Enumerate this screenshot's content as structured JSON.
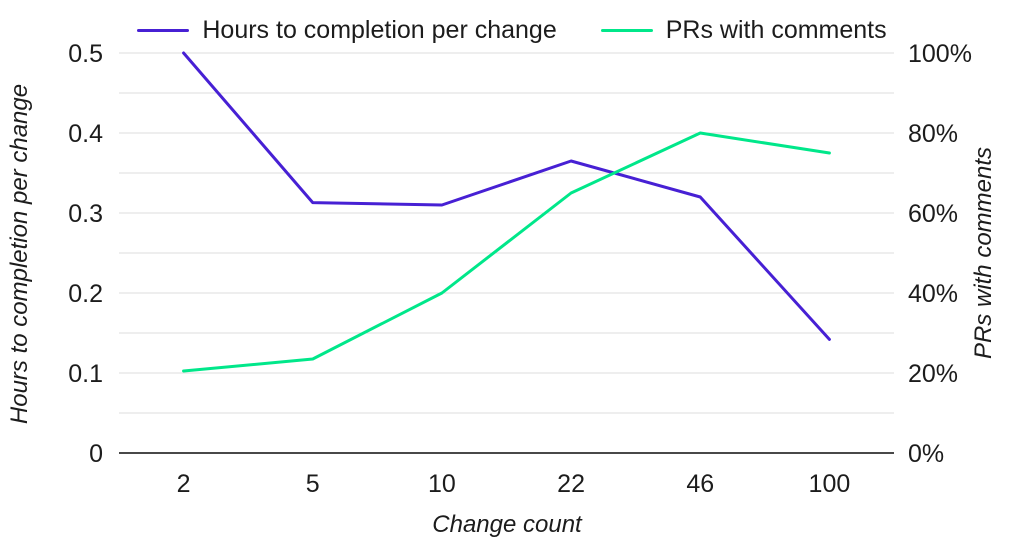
{
  "chart_data": {
    "type": "line",
    "title": "",
    "legend_position": "top",
    "grid": true,
    "x_axis": {
      "label": "Change count",
      "categories": [
        "2",
        "5",
        "10",
        "22",
        "46",
        "100"
      ]
    },
    "y_axis_left": {
      "label": "Hours to completion per change",
      "min": 0,
      "max": 0.5,
      "gridline_step": 0.05,
      "tick_labels": [
        "0",
        "0.1",
        "0.2",
        "0.3",
        "0.4",
        "0.5"
      ]
    },
    "y_axis_right": {
      "label": "PRs with comments",
      "min": 0,
      "max": 100,
      "tick_labels": [
        "0%",
        "20%",
        "40%",
        "60%",
        "80%",
        "100%"
      ]
    },
    "series": [
      {
        "name": "Hours to completion per change",
        "axis": "left",
        "color": "#4720d4",
        "values": [
          0.5,
          0.313,
          0.31,
          0.365,
          0.32,
          0.142
        ]
      },
      {
        "name": "PRs with comments",
        "axis": "right",
        "color": "#00e78a",
        "values": [
          20.5,
          23.5,
          40,
          65,
          80,
          75
        ]
      }
    ],
    "colors": {
      "gridline": "#dcdcdc",
      "axis_line": "#0b0b0b",
      "text": "#1c1c1c"
    }
  }
}
